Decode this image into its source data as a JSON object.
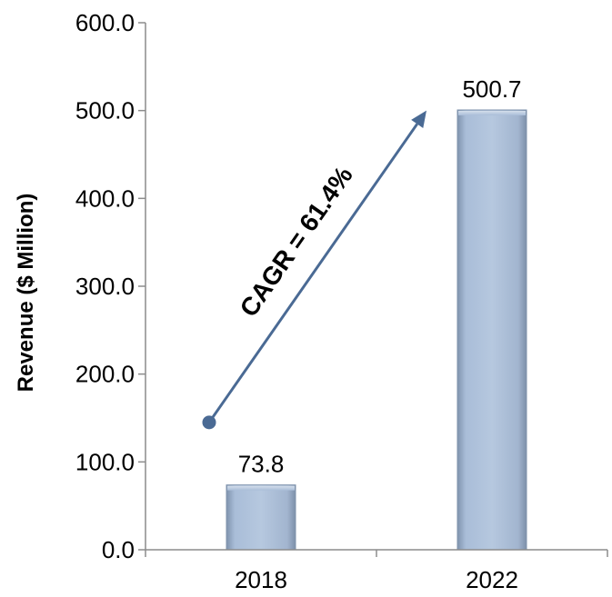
{
  "chart_data": {
    "type": "bar",
    "categories": [
      "2018",
      "2022"
    ],
    "values": [
      73.8,
      500.7
    ],
    "value_labels": [
      "73.8",
      "500.7"
    ],
    "ylabel": "Revenue ($ Million)",
    "xlabel": "",
    "ylim": [
      0,
      600
    ],
    "yticks": [
      0,
      100,
      200,
      300,
      400,
      500,
      600
    ],
    "ytick_labels": [
      "0.0",
      "100.0",
      "200.0",
      "300.0",
      "400.0",
      "500.0",
      "600.0"
    ],
    "grid": false,
    "legend": "none",
    "annotation": {
      "text": "CAGR = 61.4%",
      "from": {
        "category": "2018",
        "value": 145
      },
      "to": {
        "category": "2022",
        "value": 500
      }
    },
    "colors": {
      "bar": "#a8bcd8",
      "bar_edge": "#7f93ad",
      "arrow": "#4a6a94",
      "axis": "#8c8c8c"
    }
  }
}
